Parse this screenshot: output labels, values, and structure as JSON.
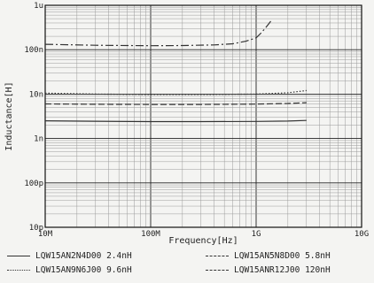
{
  "chart_data": {
    "type": "line",
    "xscale": "log",
    "yscale": "log",
    "xlim": [
      10000000,
      10000000000
    ],
    "ylim": [
      1e-11,
      1e-06
    ],
    "xlabel": "Frequency[Hz]",
    "ylabel": "Inductance[H]",
    "x_ticks": [
      {
        "value": 10000000,
        "label": "10M"
      },
      {
        "value": 100000000,
        "label": "100M"
      },
      {
        "value": 1000000000,
        "label": "1G"
      },
      {
        "value": 10000000000,
        "label": "10G"
      }
    ],
    "y_ticks": [
      {
        "value": 1e-06,
        "label": "1u"
      },
      {
        "value": 1e-07,
        "label": "100n"
      },
      {
        "value": 1e-08,
        "label": "10n"
      },
      {
        "value": 1e-09,
        "label": "1n"
      },
      {
        "value": 1e-10,
        "label": "100p"
      },
      {
        "value": 1e-11,
        "label": "10p"
      }
    ],
    "grid": true,
    "legend_position": "bottom",
    "series": [
      {
        "name": "LQW15AN2N4D00 2.4nH",
        "color": "#333333",
        "dash": "solid",
        "x": [
          10000000,
          30000000,
          100000000,
          300000000,
          1000000000,
          2000000000,
          3000000000
        ],
        "y": [
          2.5e-09,
          2.45e-09,
          2.4e-09,
          2.4e-09,
          2.42e-09,
          2.47e-09,
          2.55e-09
        ]
      },
      {
        "name": "LQW15AN5N8D00 5.8nH",
        "color": "#333333",
        "dash": "dashed",
        "x": [
          10000000,
          30000000,
          100000000,
          300000000,
          1000000000,
          2000000000,
          3000000000
        ],
        "y": [
          6e-09,
          5.9e-09,
          5.85e-09,
          5.85e-09,
          5.95e-09,
          6.15e-09,
          6.4e-09
        ]
      },
      {
        "name": "LQW15AN9N6J00 9.6nH",
        "color": "#333333",
        "dash": "dotted",
        "x": [
          10000000,
          30000000,
          100000000,
          300000000,
          1000000000,
          2000000000,
          3000000000
        ],
        "y": [
          1.05e-08,
          1e-08,
          9.8e-09,
          9.8e-09,
          1e-08,
          1.07e-08,
          1.2e-08
        ]
      },
      {
        "name": "LQW15ANR12J00 120nH",
        "color": "#333333",
        "dash": "dashdot",
        "x": [
          10000000,
          30000000,
          100000000,
          200000000,
          400000000,
          600000000,
          800000000,
          1000000000,
          1100000000,
          1200000000,
          1300000000,
          1400000000
        ],
        "y": [
          1.32e-07,
          1.26e-07,
          1.23e-07,
          1.24e-07,
          1.28e-07,
          1.36e-07,
          1.55e-07,
          1.85e-07,
          2.3e-07,
          2.9e-07,
          3.7e-07,
          4.6e-07
        ]
      }
    ]
  }
}
